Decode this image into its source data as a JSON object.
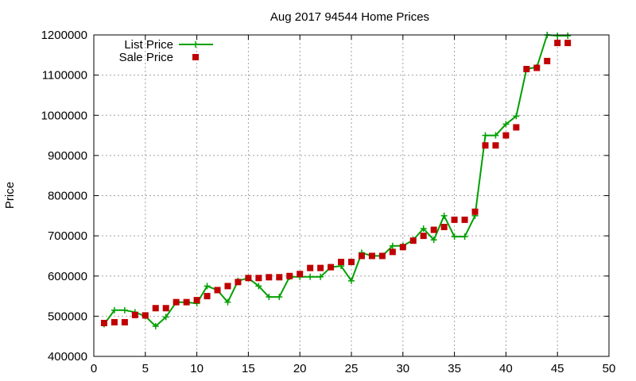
{
  "chart_data": {
    "type": "line",
    "title": "Aug 2017 94544 Home Prices",
    "xlabel": "",
    "ylabel": "Price",
    "xlim": [
      0,
      50
    ],
    "ylim": [
      400000,
      1200000
    ],
    "xticks": [
      0,
      5,
      10,
      15,
      20,
      25,
      30,
      35,
      40,
      45,
      50
    ],
    "yticks": [
      400000,
      500000,
      600000,
      700000,
      800000,
      900000,
      1000000,
      1100000,
      1200000
    ],
    "xtick_labels": [
      "0",
      "5",
      "10",
      "15",
      "20",
      "25",
      "30",
      "35",
      "40",
      "45",
      "50"
    ],
    "ytick_labels": [
      "400000",
      "500000",
      "600000",
      "700000",
      "800000",
      "900000",
      "1000000",
      "1100000",
      "1200000"
    ],
    "grid": true,
    "legend_position": "top-left",
    "x": [
      1,
      2,
      3,
      4,
      5,
      6,
      7,
      8,
      9,
      10,
      11,
      12,
      13,
      14,
      15,
      16,
      17,
      18,
      19,
      20,
      21,
      22,
      23,
      24,
      25,
      26,
      27,
      28,
      29,
      30,
      31,
      32,
      33,
      34,
      35,
      36,
      37,
      38,
      39,
      40,
      41,
      42,
      43,
      44,
      45,
      46
    ],
    "series": [
      {
        "name": "List Price",
        "style": "line-plus",
        "color": "#00a000",
        "values": [
          480000,
          515000,
          515000,
          510000,
          500000,
          475000,
          498000,
          535000,
          535000,
          532000,
          575000,
          565000,
          535000,
          588000,
          595000,
          575000,
          548000,
          548000,
          598000,
          598000,
          598000,
          598000,
          622000,
          625000,
          588000,
          658000,
          650000,
          650000,
          675000,
          675000,
          690000,
          718000,
          690000,
          750000,
          698000,
          698000,
          750000,
          950000,
          950000,
          978000,
          998000,
          1115000,
          1120000,
          1200000,
          1198000,
          1198000
        ]
      },
      {
        "name": "Sale Price",
        "style": "square-points",
        "color": "#c00000",
        "values": [
          483000,
          485000,
          485000,
          503000,
          502000,
          520000,
          520000,
          535000,
          535000,
          540000,
          550000,
          565000,
          575000,
          585000,
          595000,
          595000,
          597000,
          597000,
          600000,
          605000,
          620000,
          620000,
          622000,
          635000,
          635000,
          650000,
          650000,
          650000,
          660000,
          672000,
          688000,
          700000,
          715000,
          722000,
          740000,
          740000,
          760000,
          925000,
          925000,
          950000,
          970000,
          1115000,
          1118000,
          1135000,
          1180000,
          1180000
        ]
      }
    ]
  }
}
